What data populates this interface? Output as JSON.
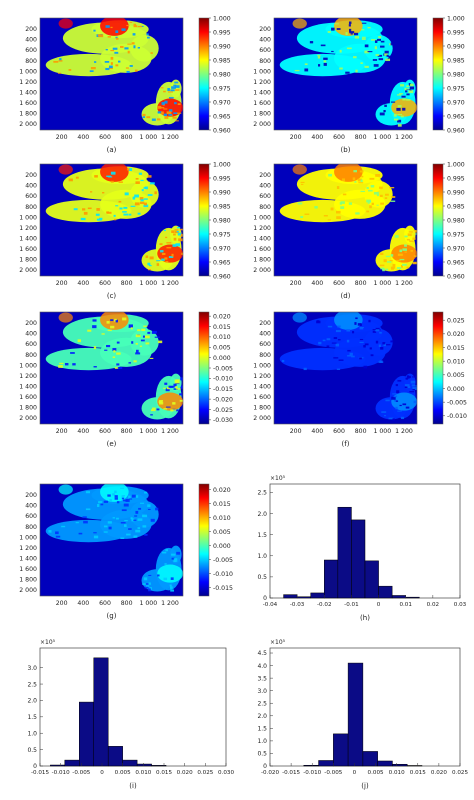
{
  "chart_data": [
    {
      "type": "heatmap",
      "caption": "(a)",
      "y_ticks": [
        "200",
        "400",
        "600",
        "800",
        "1 000",
        "1 200",
        "1 400",
        "1 600",
        "1 800",
        "2 000"
      ],
      "x_ticks": [
        "200",
        "400",
        "600",
        "800",
        "1 000",
        "1 200"
      ],
      "colorbar": {
        "ticks": [
          "1.000",
          "0.995",
          "0.990",
          "0.985",
          "0.980",
          "0.975",
          "0.970",
          "0.965",
          "0.960"
        ],
        "min": 0.96,
        "max": 1.0
      },
      "field_value": 0.983,
      "field_hotspot": 0.995
    },
    {
      "type": "heatmap",
      "caption": "(b)",
      "y_ticks": [
        "200",
        "400",
        "600",
        "800",
        "1 000",
        "1 200",
        "1 400",
        "1 600",
        "1 800",
        "2 000"
      ],
      "x_ticks": [
        "200",
        "400",
        "600",
        "800",
        "1 000",
        "1 200"
      ],
      "colorbar": {
        "ticks": [
          "1.000",
          "0.995",
          "0.990",
          "0.985",
          "0.980",
          "0.975",
          "0.970",
          "0.965",
          "0.960"
        ],
        "min": 0.96,
        "max": 1.0
      },
      "field_value": 0.975,
      "field_hotspot": 0.988
    },
    {
      "type": "heatmap",
      "caption": "(c)",
      "y_ticks": [
        "200",
        "400",
        "600",
        "800",
        "1 000",
        "1 200",
        "1 400",
        "1 600",
        "1 800",
        "2 000"
      ],
      "x_ticks": [
        "200",
        "400",
        "600",
        "800",
        "1 000",
        "1 200"
      ],
      "colorbar": {
        "ticks": [
          "1.000",
          "0.995",
          "0.990",
          "0.985",
          "0.980",
          "0.975",
          "0.970",
          "0.965",
          "0.960"
        ],
        "min": 0.96,
        "max": 1.0
      },
      "field_value": 0.984,
      "field_hotspot": 0.994
    },
    {
      "type": "heatmap",
      "caption": "(d)",
      "y_ticks": [
        "200",
        "400",
        "600",
        "800",
        "1 000",
        "1 200",
        "1 400",
        "1 600",
        "1 800",
        "2 000"
      ],
      "x_ticks": [
        "200",
        "400",
        "600",
        "800",
        "1 000",
        "1 200"
      ],
      "colorbar": {
        "ticks": [
          "1.000",
          "0.995",
          "0.990",
          "0.985",
          "0.980",
          "0.975",
          "0.970",
          "0.965",
          "0.960"
        ],
        "min": 0.96,
        "max": 1.0
      },
      "field_value": 0.985,
      "field_hotspot": 0.99
    },
    {
      "type": "heatmap",
      "caption": "(e)",
      "y_ticks": [
        "200",
        "400",
        "600",
        "800",
        "1 000",
        "1 200",
        "1 400",
        "1 600",
        "1 800",
        "2 000"
      ],
      "x_ticks": [
        "200",
        "400",
        "600",
        "800",
        "1 000",
        "1 200"
      ],
      "colorbar": {
        "ticks": [
          "0.020",
          "0.015",
          "0.010",
          "0.005",
          "0.000",
          "-0.005",
          "-0.010",
          "-0.015",
          "-0.020",
          "-0.025",
          "-0.030"
        ],
        "min": -0.032,
        "max": 0.022
      },
      "field_value": -0.008,
      "field_hotspot": 0.008
    },
    {
      "type": "heatmap",
      "caption": "(f)",
      "y_ticks": [
        "200",
        "400",
        "600",
        "800",
        "1 000",
        "1 200",
        "1 400",
        "1 600",
        "1 800",
        "2 000"
      ],
      "x_ticks": [
        "200",
        "400",
        "600",
        "800",
        "1 000",
        "1 200"
      ],
      "colorbar": {
        "ticks": [
          "0.025",
          "0.020",
          "0.015",
          "0.010",
          "0.005",
          "0.000",
          "-0.005",
          "-0.010"
        ],
        "min": -0.013,
        "max": 0.028
      },
      "field_value": -0.006,
      "field_hotspot": -0.002
    },
    {
      "type": "heatmap",
      "caption": "(g)",
      "y_ticks": [
        "200",
        "400",
        "600",
        "800",
        "1 000",
        "1 200",
        "1 400",
        "1 600",
        "1 800",
        "2 000"
      ],
      "x_ticks": [
        "200",
        "400",
        "600",
        "800",
        "1 000",
        "1 200"
      ],
      "colorbar": {
        "ticks": [
          "0.020",
          "0.015",
          "0.010",
          "0.005",
          "0.000",
          "-0.005",
          "-0.010",
          "-0.015"
        ],
        "min": -0.018,
        "max": 0.022
      },
      "field_value": -0.007,
      "field_hotspot": -0.003
    },
    {
      "type": "bar",
      "caption": "(h)",
      "multiplier": "×10⁵",
      "x_ticks": [
        "-0.04",
        "-0.03",
        "-0.02",
        "-0.01",
        "0",
        "0.01",
        "0.02",
        "0.03"
      ],
      "y_ticks": [
        "0",
        "0.5",
        "1.0",
        "1.5",
        "2.0",
        "2.5"
      ],
      "xlim": [
        -0.04,
        0.03
      ],
      "ylim": [
        0,
        2.7
      ],
      "bins": [
        {
          "x0": -0.035,
          "x1": -0.03,
          "v": 0.08
        },
        {
          "x0": -0.03,
          "x1": -0.025,
          "v": 0.03
        },
        {
          "x0": -0.025,
          "x1": -0.02,
          "v": 0.12
        },
        {
          "x0": -0.02,
          "x1": -0.015,
          "v": 0.9
        },
        {
          "x0": -0.015,
          "x1": -0.01,
          "v": 2.15
        },
        {
          "x0": -0.01,
          "x1": -0.005,
          "v": 1.85
        },
        {
          "x0": -0.005,
          "x1": 0.0,
          "v": 0.88
        },
        {
          "x0": 0.0,
          "x1": 0.005,
          "v": 0.28
        },
        {
          "x0": 0.005,
          "x1": 0.01,
          "v": 0.06
        },
        {
          "x0": 0.01,
          "x1": 0.015,
          "v": 0.02
        }
      ]
    },
    {
      "type": "bar",
      "caption": "(i)",
      "multiplier": "×10⁵",
      "x_ticks": [
        "-0.015",
        "-0.010",
        "-0.005",
        "0",
        "0.005",
        "0.010",
        "0.015",
        "0.020",
        "0.025",
        "0.030"
      ],
      "y_ticks": [
        "0",
        "0.5",
        "1.0",
        "1.5",
        "2.0",
        "2.5",
        "3.0"
      ],
      "xlim": [
        -0.015,
        0.03
      ],
      "ylim": [
        0,
        3.6
      ],
      "bins": [
        {
          "x0": -0.0125,
          "x1": -0.009,
          "v": 0.03
        },
        {
          "x0": -0.009,
          "x1": -0.0055,
          "v": 0.18
        },
        {
          "x0": -0.0055,
          "x1": -0.002,
          "v": 1.95
        },
        {
          "x0": -0.002,
          "x1": 0.0015,
          "v": 3.3
        },
        {
          "x0": 0.0015,
          "x1": 0.005,
          "v": 0.6
        },
        {
          "x0": 0.005,
          "x1": 0.0085,
          "v": 0.18
        },
        {
          "x0": 0.0085,
          "x1": 0.012,
          "v": 0.06
        },
        {
          "x0": 0.012,
          "x1": 0.0155,
          "v": 0.02
        }
      ]
    },
    {
      "type": "bar",
      "caption": "(j)",
      "multiplier": "×10⁵",
      "x_ticks": [
        "-0.020",
        "-0.015",
        "-0.010",
        "-0.005",
        "0",
        "0.005",
        "0.010",
        "0.015",
        "0.020",
        "0.025"
      ],
      "y_ticks": [
        "0",
        "0.5",
        "1.0",
        "1.5",
        "2.0",
        "2.5",
        "3.0",
        "3.5",
        "4.0",
        "4.5"
      ],
      "xlim": [
        -0.02,
        0.025
      ],
      "ylim": [
        0,
        4.7
      ],
      "bins": [
        {
          "x0": -0.012,
          "x1": -0.0085,
          "v": 0.03
        },
        {
          "x0": -0.0085,
          "x1": -0.005,
          "v": 0.22
        },
        {
          "x0": -0.005,
          "x1": -0.0015,
          "v": 1.28
        },
        {
          "x0": -0.0015,
          "x1": 0.002,
          "v": 4.1
        },
        {
          "x0": 0.002,
          "x1": 0.0055,
          "v": 0.58
        },
        {
          "x0": 0.0055,
          "x1": 0.009,
          "v": 0.2
        },
        {
          "x0": 0.009,
          "x1": 0.0125,
          "v": 0.07
        },
        {
          "x0": 0.0125,
          "x1": 0.016,
          "v": 0.02
        }
      ]
    }
  ]
}
